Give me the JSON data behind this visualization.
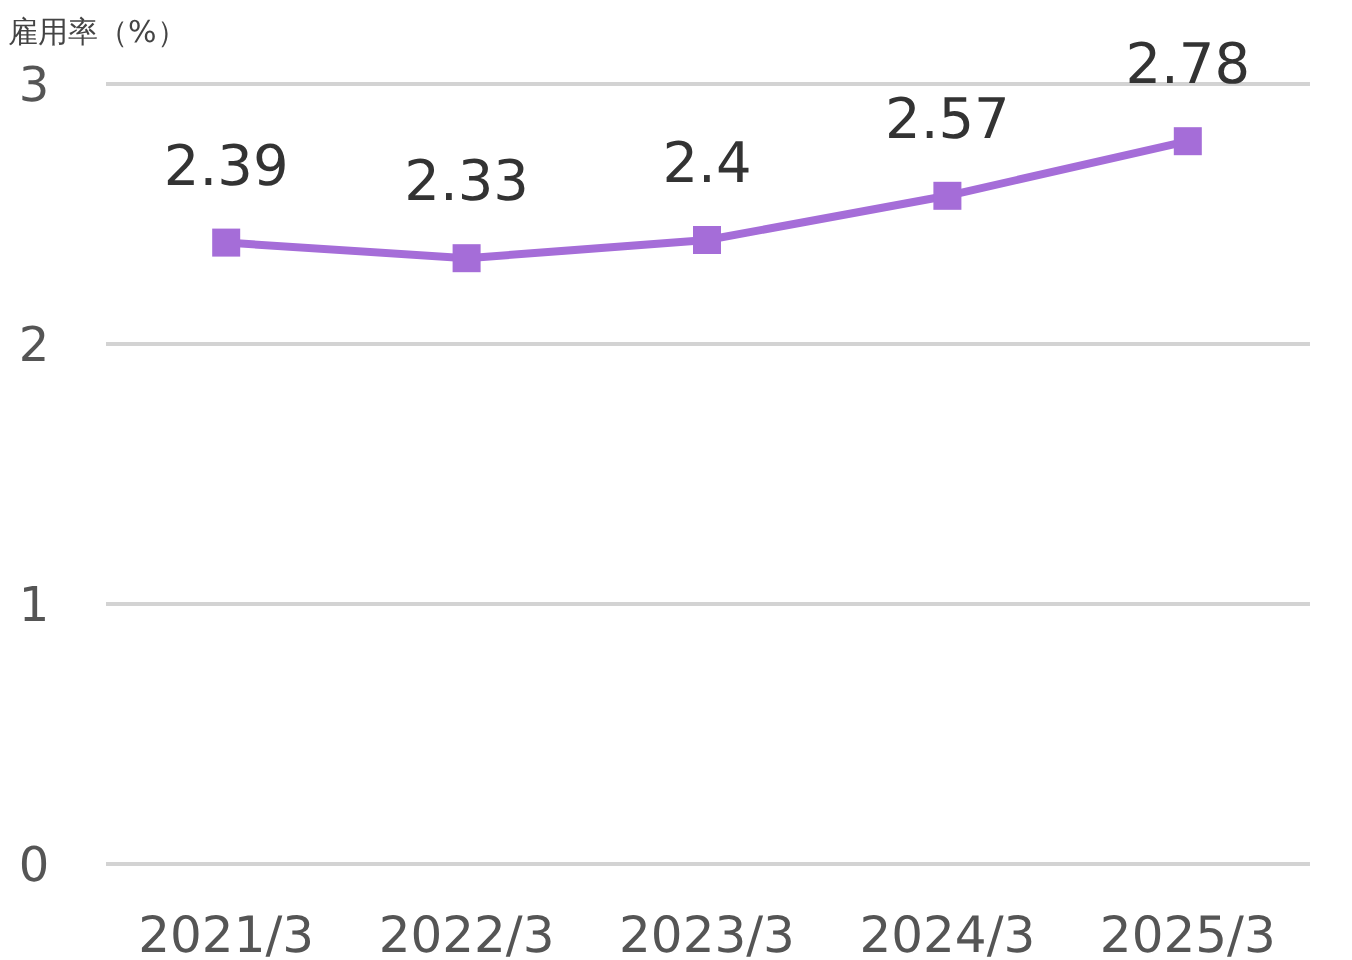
{
  "chart_data": {
    "type": "line",
    "ylabel": "雇用率（%）",
    "categories": [
      "2021/3",
      "2022/3",
      "2023/3",
      "2024/3",
      "2025/3"
    ],
    "series": [
      {
        "color": "#a56dd8",
        "values": [
          2.39,
          2.33,
          2.4,
          2.57,
          2.78
        ]
      }
    ],
    "ylim": [
      0,
      3
    ],
    "yticks": [
      0,
      1,
      2,
      3
    ],
    "grid": "y",
    "marker": "square",
    "line_style": "solid",
    "data_labels": true
  }
}
